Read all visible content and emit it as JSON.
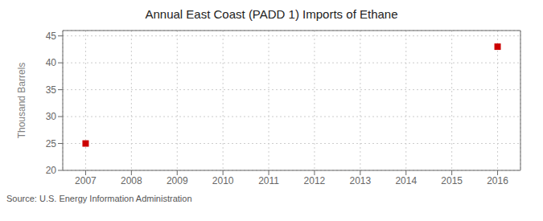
{
  "chart_data": {
    "type": "scatter",
    "title": "Annual East Coast (PADD 1) Imports of Ethane",
    "y_label": "Thousand Barrels",
    "source": "Source: U.S. Energy Information Administration",
    "x": [
      2007,
      2016
    ],
    "values": [
      25,
      43
    ],
    "color": "#cc0000",
    "marker": "square",
    "xlim": [
      2006.5,
      2016.5
    ],
    "ylim": [
      20,
      46
    ],
    "xticks": [
      2007,
      2008,
      2009,
      2010,
      2011,
      2012,
      2013,
      2014,
      2015,
      2016
    ],
    "yticks": [
      20,
      25,
      30,
      35,
      40,
      45
    ],
    "grid": true
  }
}
